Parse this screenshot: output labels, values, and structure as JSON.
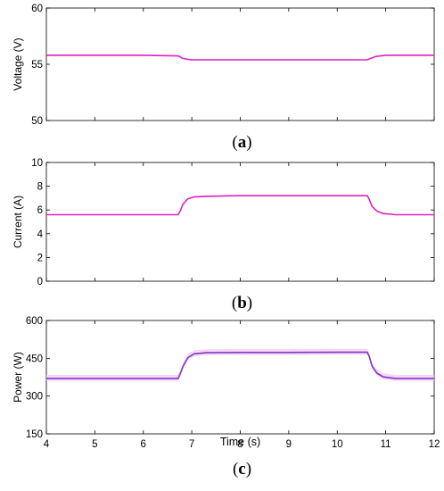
{
  "chart_data": [
    {
      "type": "line",
      "panel_label": "(a)",
      "panel_letter": "a",
      "ylabel": "Voltage (V)",
      "ylim": [
        50,
        60
      ],
      "yticks": [
        "50",
        "55",
        "60"
      ],
      "xlim": [
        4,
        12
      ],
      "grid": false,
      "series": [
        {
          "color": "#e020c0",
          "x": [
            4.0,
            5.0,
            6.0,
            6.7,
            6.75,
            6.8,
            6.9,
            7.0,
            8.0,
            9.0,
            10.0,
            10.5,
            10.6,
            10.65,
            10.7,
            10.8,
            11.0,
            12.0
          ],
          "values": [
            55.8,
            55.8,
            55.8,
            55.75,
            55.7,
            55.55,
            55.45,
            55.4,
            55.4,
            55.4,
            55.4,
            55.4,
            55.4,
            55.45,
            55.55,
            55.7,
            55.8,
            55.8
          ]
        }
      ]
    },
    {
      "type": "line",
      "panel_label": "(b)",
      "panel_letter": "b",
      "ylabel": "Current (A)",
      "ylim": [
        0,
        10
      ],
      "yticks": [
        "0",
        "2",
        "4",
        "6",
        "8",
        "10"
      ],
      "xlim": [
        4,
        12
      ],
      "grid": false,
      "series": [
        {
          "color": "#e020c0",
          "x": [
            4.0,
            5.0,
            6.0,
            6.72,
            6.76,
            6.82,
            6.92,
            7.05,
            7.3,
            8.0,
            9.0,
            10.0,
            10.5,
            10.62,
            10.66,
            10.72,
            10.82,
            10.95,
            11.2,
            12.0
          ],
          "values": [
            5.6,
            5.6,
            5.6,
            5.6,
            5.9,
            6.5,
            6.95,
            7.1,
            7.15,
            7.2,
            7.2,
            7.2,
            7.2,
            7.2,
            6.9,
            6.3,
            5.9,
            5.7,
            5.6,
            5.6
          ]
        }
      ]
    },
    {
      "type": "line",
      "panel_label": "(c)",
      "panel_letter": "c",
      "ylabel": "Power (W)",
      "xlabel": "Time (s)",
      "ylim": [
        150,
        600
      ],
      "yticks": [
        "150",
        "300",
        "450",
        "600"
      ],
      "xlim": [
        4,
        12
      ],
      "xticks": [
        "4",
        "5",
        "6",
        "7",
        "8",
        "9",
        "10",
        "11",
        "12"
      ],
      "grid": false,
      "series": [
        {
          "color": "#f6c8f0",
          "x": [
            4.0,
            5.0,
            6.0,
            6.72,
            6.76,
            6.82,
            6.92,
            7.05,
            7.3,
            8.0,
            9.0,
            10.0,
            10.5,
            10.62,
            10.66,
            10.72,
            10.82,
            10.95,
            11.2,
            12.0
          ],
          "values": [
            372,
            372,
            372,
            372,
            390,
            420,
            455,
            470,
            474,
            475,
            475,
            476,
            476,
            476,
            460,
            420,
            393,
            378,
            372,
            372
          ],
          "band": 12
        },
        {
          "color": "#7b3cc8",
          "x": [
            4.0,
            5.0,
            6.0,
            6.72,
            6.76,
            6.82,
            6.92,
            7.05,
            7.3,
            8.0,
            9.0,
            10.0,
            10.5,
            10.62,
            10.66,
            10.72,
            10.82,
            10.95,
            11.2,
            12.0
          ],
          "values": [
            370,
            370,
            370,
            370,
            388,
            418,
            453,
            468,
            472,
            473,
            473,
            474,
            474,
            474,
            458,
            418,
            391,
            376,
            370,
            370
          ]
        }
      ]
    }
  ]
}
